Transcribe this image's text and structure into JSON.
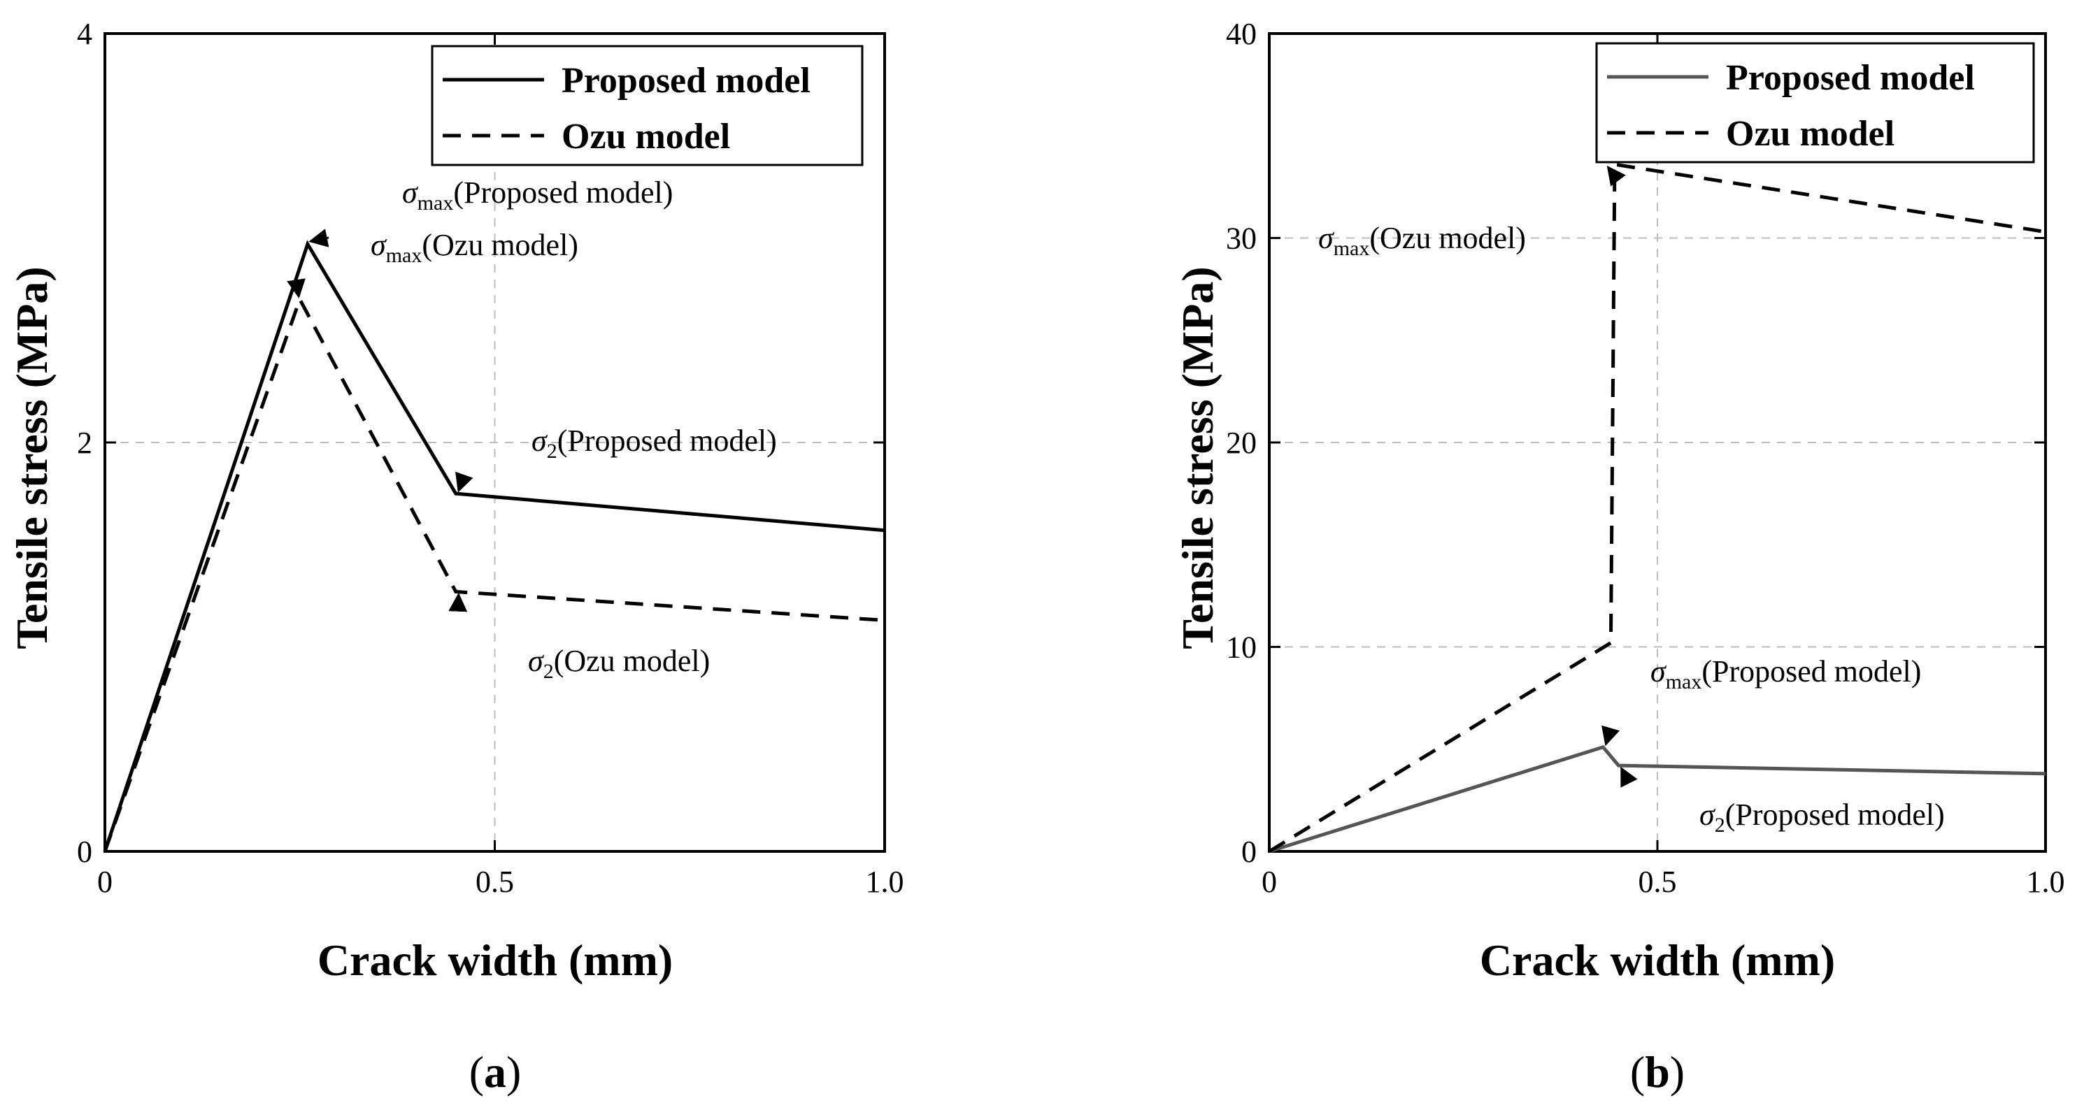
{
  "chart_data": [
    {
      "type": "line",
      "panel_label": "(a)",
      "panel_letter": "a",
      "xlabel": "Crack width (mm)",
      "ylabel": "Tensile stress (MPa)",
      "xlim": [
        0,
        1.0
      ],
      "ylim": [
        0,
        4
      ],
      "xticks": [
        "0",
        "0.5",
        "1.0"
      ],
      "yticks": [
        "0",
        "2",
        "4"
      ],
      "xtick_values": [
        0,
        0.5,
        1.0
      ],
      "ytick_values": [
        0,
        2,
        4
      ],
      "grid": true,
      "legend_position": "top-right",
      "series": [
        {
          "name": "Proposed model",
          "style": "solid",
          "color": "#000000",
          "x": [
            0,
            0.26,
            0.45,
            1.0
          ],
          "y": [
            0,
            2.97,
            1.75,
            1.57
          ]
        },
        {
          "name": "Ozu model",
          "style": "dashed",
          "color": "#000000",
          "x": [
            0,
            0.25,
            0.45,
            1.0
          ],
          "y": [
            0,
            2.7,
            1.27,
            1.13
          ]
        }
      ],
      "annotations": [
        {
          "symbol": "σ",
          "sub": "max",
          "label": "(Proposed model)",
          "point": [
            0.26,
            2.97
          ]
        },
        {
          "symbol": "σ",
          "sub": "max",
          "label": "(Ozu model)",
          "point": [
            0.245,
            2.7
          ]
        },
        {
          "symbol": "σ",
          "sub": "2",
          "label": "(Proposed model)",
          "point": [
            0.45,
            1.75
          ]
        },
        {
          "symbol": "σ",
          "sub": "2",
          "label": "(Ozu model)",
          "point": [
            0.45,
            1.27
          ]
        }
      ]
    },
    {
      "type": "line",
      "panel_label": "(b)",
      "panel_letter": "b",
      "xlabel": "Crack width (mm)",
      "ylabel": "Tensile stress (MPa)",
      "xlim": [
        0,
        1.0
      ],
      "ylim": [
        0,
        40
      ],
      "xticks": [
        "0",
        "0.5",
        "1.0"
      ],
      "yticks": [
        "0",
        "10",
        "20",
        "30",
        "40"
      ],
      "xtick_values": [
        0,
        0.5,
        1.0
      ],
      "ytick_values": [
        0,
        10,
        20,
        30,
        40
      ],
      "grid": true,
      "legend_position": "top-right",
      "series": [
        {
          "name": "Proposed model",
          "style": "solid",
          "color": "#555555",
          "x": [
            0,
            0.43,
            0.45,
            1.0
          ],
          "y": [
            0,
            5.1,
            4.2,
            3.8
          ]
        },
        {
          "name": "Ozu model",
          "style": "dashed",
          "color": "#000000",
          "x": [
            0,
            0.44,
            0.445,
            1.0
          ],
          "y": [
            0,
            10.2,
            33.6,
            30.3
          ]
        }
      ],
      "annotations": [
        {
          "symbol": "σ",
          "sub": "max",
          "label": "(Ozu model)",
          "point": [
            0.44,
            33.6
          ]
        },
        {
          "symbol": "σ",
          "sub": "max",
          "label": "(Proposed model)",
          "point": [
            0.43,
            5.1
          ]
        },
        {
          "symbol": "σ",
          "sub": "2",
          "label": "(Proposed model)",
          "point": [
            0.45,
            4.2
          ]
        }
      ]
    }
  ]
}
